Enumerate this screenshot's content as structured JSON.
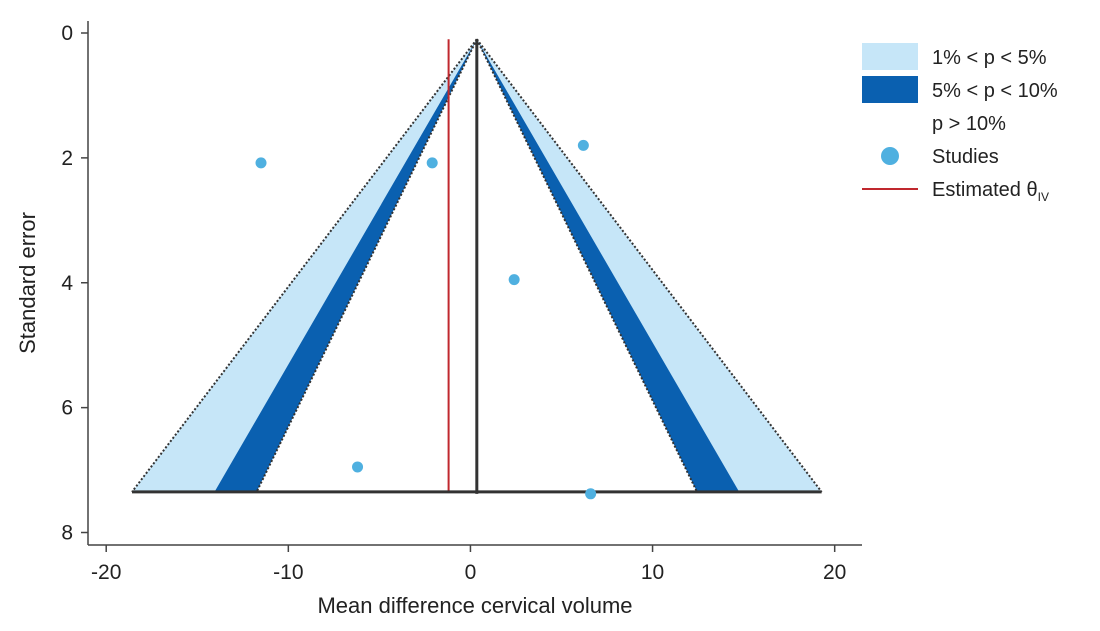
{
  "chart_data": {
    "type": "scatter",
    "subtype": "funnel",
    "title": "",
    "xlabel": "Mean difference cervical volume",
    "ylabel": "Standard error",
    "xlim": [
      -21,
      21.5
    ],
    "ylim": [
      0,
      8.2
    ],
    "y_inverted": true,
    "x_ticks": [
      -20,
      -10,
      0,
      10,
      20
    ],
    "x_tick_labels": [
      "-20",
      "-10",
      "0",
      "10",
      "20"
    ],
    "y_ticks": [
      0,
      2,
      4,
      6,
      8
    ],
    "y_tick_labels": [
      "0",
      "2",
      "4",
      "6",
      "8"
    ],
    "funnel": {
      "center": 0.35,
      "apex_se": 0.1,
      "max_se": 7.35,
      "z_10": 1.645,
      "z_5": 1.96,
      "z_1": 2.576
    },
    "estimated_theta_iv": -1.2,
    "studies": [
      {
        "x": -11.5,
        "se": 2.08
      },
      {
        "x": -2.1,
        "se": 2.08
      },
      {
        "x": 6.2,
        "se": 1.8
      },
      {
        "x": 2.4,
        "se": 3.95
      },
      {
        "x": -6.2,
        "se": 6.95
      },
      {
        "x": 6.6,
        "se": 7.38
      }
    ],
    "legend": {
      "position": "top-right",
      "entries": [
        {
          "label": "1% < p < 5%",
          "kind": "band-light"
        },
        {
          "label": "5% < p < 10%",
          "kind": "band-dark"
        },
        {
          "label": "p > 10%",
          "kind": "band-white"
        },
        {
          "label": "Studies",
          "kind": "marker"
        },
        {
          "label": "Estimated θ",
          "subscript": "IV",
          "kind": "line"
        }
      ]
    },
    "colors": {
      "band_light": "#c6e6f8",
      "band_dark": "#0a60b0",
      "marker": "#4fb0e0",
      "estimate_line": "#c0282e",
      "funnel_line": "#333333",
      "axis": "#444444"
    }
  }
}
